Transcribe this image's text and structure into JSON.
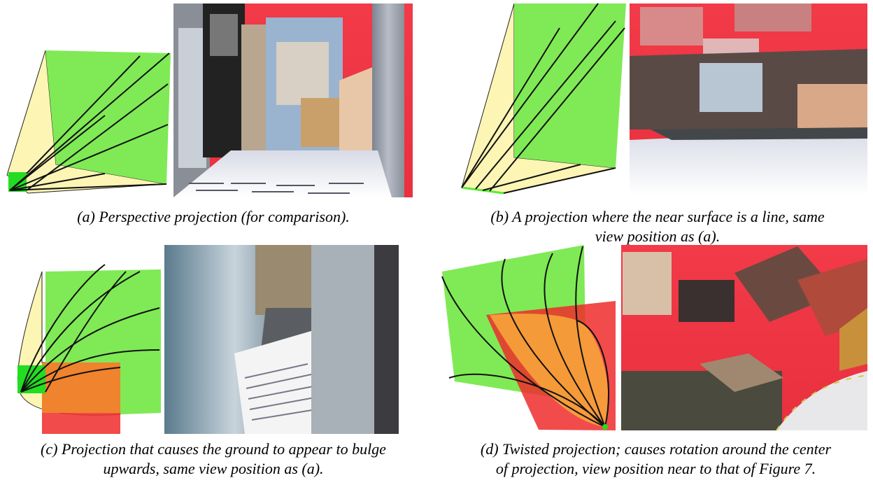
{
  "figure": {
    "panels": [
      {
        "caption": [
          "(a) Perspective projection (for comparison)."
        ]
      },
      {
        "caption": [
          "(b) A projection where the near surface is a line, same",
          "view position as (a)."
        ]
      },
      {
        "caption": [
          "(c) Projection that causes the ground to appear to bulge",
          "upwards, same view position as (a)."
        ]
      },
      {
        "caption": [
          "(d) Twisted projection; causes rotation around the center",
          "of projection, view position near to that of Figure 7."
        ]
      }
    ]
  }
}
